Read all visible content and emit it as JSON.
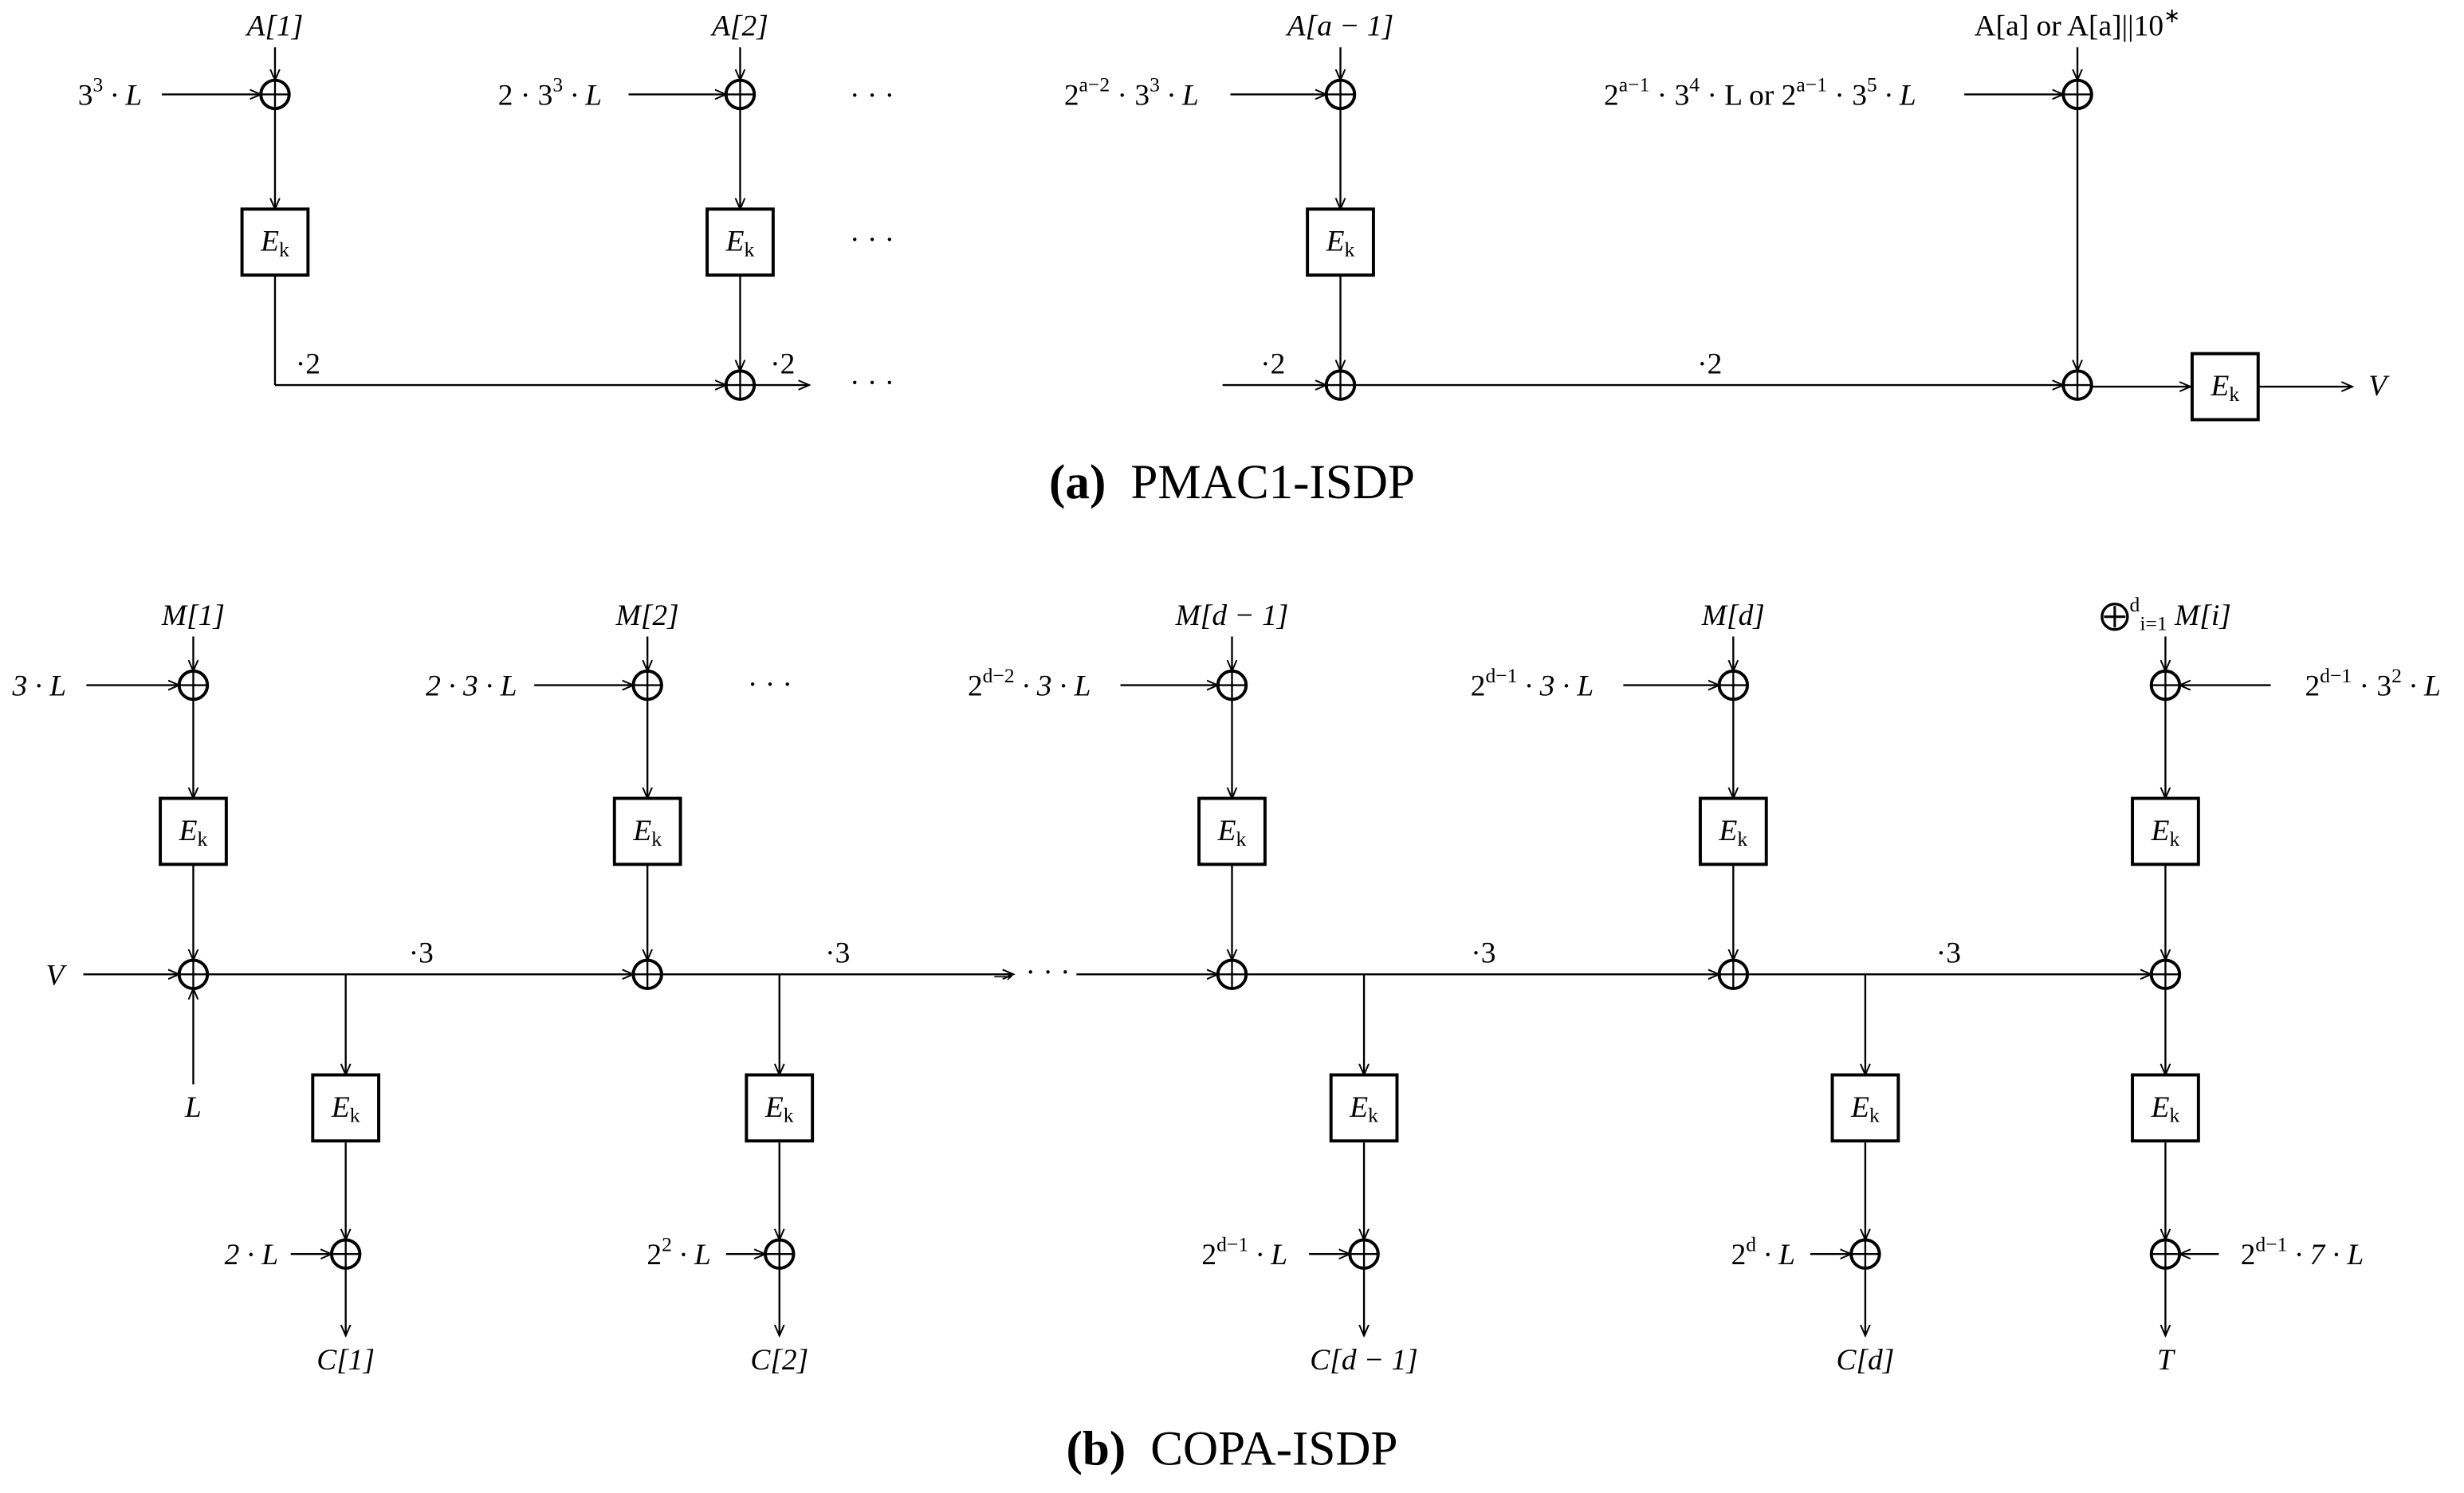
{
  "figure_a": {
    "caption_tag": "(a)",
    "caption": "PMAC1-ISDP",
    "labels": [
      [
        "A[1]"
      ],
      [
        "3",
        {
          "sup": "3"
        },
        " · L"
      ],
      [
        "A[2]"
      ],
      [
        "2 · 3",
        {
          "sup": "3"
        },
        " · L"
      ],
      [
        "A[a − 1]"
      ],
      [
        "2",
        {
          "sup": "a−2"
        },
        " · 3",
        {
          "sup": "3"
        },
        " · L"
      ],
      [
        "A[a] or A[a]||10",
        {
          "sup": "∗"
        }
      ],
      [
        "2",
        {
          "sup": "a−1"
        },
        " · 3",
        {
          "sup": "4"
        },
        " · L or 2",
        {
          "sup": "a−1"
        },
        " · 3",
        {
          "sup": "5"
        },
        " · L"
      ],
      [
        "·2"
      ],
      [
        "·2"
      ],
      [
        "·2"
      ],
      [
        "·2"
      ],
      [
        "· · ·"
      ],
      [
        "· · ·"
      ],
      [
        "· · ·"
      ],
      [
        "V"
      ]
    ],
    "blocks": [
      [
        "E",
        {
          "sub": "k"
        }
      ],
      [
        "E",
        {
          "sub": "k"
        }
      ],
      [
        "E",
        {
          "sub": "k"
        }
      ],
      [
        "E",
        {
          "sub": "k"
        }
      ]
    ]
  },
  "figure_b": {
    "caption_tag": "(b)",
    "caption": "COPA-ISDP",
    "labels": [
      [
        "M[1]"
      ],
      [
        "3 · L"
      ],
      [
        "M[2]"
      ],
      [
        "2 · 3 · L"
      ],
      [
        "· · ·"
      ],
      [
        "M[d − 1]"
      ],
      [
        "2",
        {
          "sup": "d−2"
        },
        " · 3 · L"
      ],
      [
        "M[d]"
      ],
      [
        "2",
        {
          "sup": "d−1"
        },
        " · 3 · L"
      ],
      [
        "⨁",
        {
          "sup": "d"
        },
        {
          "sub": "i=1"
        },
        " M[i]"
      ],
      [
        "2",
        {
          "sup": "d−1"
        },
        " · 3",
        {
          "sup": "2"
        },
        " · L"
      ],
      [
        "V"
      ],
      [
        "L"
      ],
      [
        "·3"
      ],
      [
        "·3"
      ],
      [
        "·3"
      ],
      [
        "·3"
      ],
      [
        "→ · · ·"
      ],
      [
        "2 · L"
      ],
      [
        "2",
        {
          "sup": "2"
        },
        " · L"
      ],
      [
        "2",
        {
          "sup": "d−1"
        },
        " · L"
      ],
      [
        "2",
        {
          "sup": "d"
        },
        " · L"
      ],
      [
        "2",
        {
          "sup": "d−1"
        },
        " · 7 · L"
      ],
      [
        "C[1]"
      ],
      [
        "C[2]"
      ],
      [
        "C[d − 1]"
      ],
      [
        "C[d]"
      ],
      [
        "T"
      ]
    ],
    "blocks": [
      [
        "E",
        {
          "sub": "k"
        }
      ],
      [
        "E",
        {
          "sub": "k"
        }
      ],
      [
        "E",
        {
          "sub": "k"
        }
      ],
      [
        "E",
        {
          "sub": "k"
        }
      ],
      [
        "E",
        {
          "sub": "k"
        }
      ],
      [
        "E",
        {
          "sub": "k"
        }
      ],
      [
        "E",
        {
          "sub": "k"
        }
      ],
      [
        "E",
        {
          "sub": "k"
        }
      ],
      [
        "E",
        {
          "sub": "k"
        }
      ],
      [
        "E",
        {
          "sub": "k"
        }
      ]
    ]
  }
}
